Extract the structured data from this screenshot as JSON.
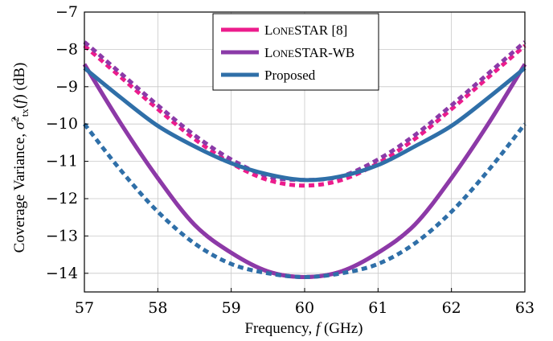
{
  "chart_data": {
    "type": "line",
    "xlabel": "Frequency, f (GHz)",
    "ylabel": "Coverage Variance, σ̂²tx(f) (dB)",
    "xlim": [
      57,
      63
    ],
    "ylim": [
      -14.5,
      -7
    ],
    "xticks": [
      57,
      58,
      59,
      60,
      61,
      62,
      63
    ],
    "yticks": [
      -7,
      -8,
      -9,
      -10,
      -11,
      -12,
      -13,
      -14
    ],
    "xtick_labels": [
      "57",
      "58",
      "59",
      "60",
      "61",
      "62",
      "63"
    ],
    "ytick_labels": [
      "−7",
      "−8",
      "−9",
      "−10",
      "−11",
      "−12",
      "−13",
      "−14"
    ],
    "grid": true,
    "legend_position": "top-center",
    "legend": [
      {
        "label": "LONESTAR [8]",
        "color": "#ec1c8c"
      },
      {
        "label": "LONESTAR-WB",
        "color": "#8b3aa8"
      },
      {
        "label": "Proposed",
        "color": "#2f6fa8"
      }
    ],
    "series": [
      {
        "name": "LONESTAR [8]",
        "style": "dashed",
        "color": "#ec1c8c",
        "x": [
          57,
          57.5,
          58,
          58.5,
          59,
          59.5,
          60,
          60.5,
          61,
          61.5,
          62,
          62.5,
          63
        ],
        "y": [
          -7.9,
          -8.75,
          -9.6,
          -10.4,
          -11.05,
          -11.5,
          -11.65,
          -11.5,
          -11.05,
          -10.4,
          -9.6,
          -8.75,
          -7.9
        ]
      },
      {
        "name": "LONESTAR [8]",
        "style": "solid",
        "color": "#ec1c8c",
        "x": [
          57,
          57.5,
          58,
          58.5,
          59,
          59.5,
          60,
          60.5,
          61,
          61.5,
          62,
          62.5,
          63
        ],
        "y": [
          -8.4,
          -10.0,
          -11.45,
          -12.7,
          -13.45,
          -13.95,
          -14.1,
          -13.95,
          -13.45,
          -12.7,
          -11.45,
          -10.0,
          -8.4
        ]
      },
      {
        "name": "LONESTAR-WB",
        "style": "dashed",
        "color": "#8b3aa8",
        "x": [
          57,
          57.5,
          58,
          58.5,
          59,
          59.5,
          60,
          60.5,
          61,
          61.5,
          62,
          62.5,
          63
        ],
        "y": [
          -7.8,
          -8.65,
          -9.5,
          -10.3,
          -10.95,
          -11.4,
          -11.5,
          -11.4,
          -10.95,
          -10.3,
          -9.5,
          -8.65,
          -7.8
        ]
      },
      {
        "name": "LONESTAR-WB",
        "style": "solid",
        "color": "#8b3aa8",
        "x": [
          57,
          57.5,
          58,
          58.5,
          59,
          59.5,
          60,
          60.5,
          61,
          61.5,
          62,
          62.5,
          63
        ],
        "y": [
          -8.4,
          -10.0,
          -11.45,
          -12.7,
          -13.45,
          -13.95,
          -14.1,
          -13.95,
          -13.45,
          -12.7,
          -11.45,
          -10.0,
          -8.4
        ]
      },
      {
        "name": "Proposed",
        "style": "dashed",
        "color": "#2f6fa8",
        "x": [
          57,
          57.5,
          58,
          58.5,
          59,
          59.5,
          60,
          60.5,
          61,
          61.5,
          62,
          62.5,
          63
        ],
        "y": [
          -10.0,
          -11.25,
          -12.35,
          -13.2,
          -13.75,
          -14.0,
          -14.1,
          -14.0,
          -13.75,
          -13.2,
          -12.35,
          -11.25,
          -10.0
        ]
      },
      {
        "name": "Proposed",
        "style": "solid",
        "color": "#2f6fa8",
        "x": [
          57,
          57.5,
          58,
          58.5,
          59,
          59.5,
          60,
          60.5,
          61,
          61.5,
          62,
          62.5,
          63
        ],
        "y": [
          -8.5,
          -9.3,
          -10.05,
          -10.6,
          -11.05,
          -11.35,
          -11.5,
          -11.4,
          -11.1,
          -10.6,
          -10.05,
          -9.3,
          -8.5
        ]
      }
    ]
  }
}
